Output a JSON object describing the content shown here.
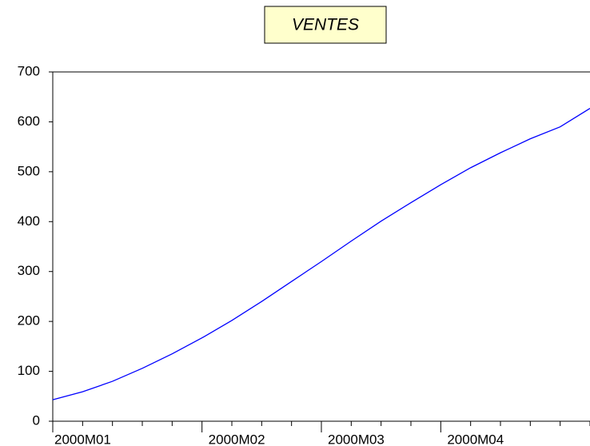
{
  "chart_data": {
    "type": "line",
    "title": "VENTES",
    "categories": [
      "2000M01",
      null,
      null,
      null,
      null,
      "2000M02",
      null,
      null,
      null,
      "2000M03",
      null,
      null,
      null,
      "2000M04",
      null,
      null,
      null,
      null,
      null
    ],
    "series": [
      {
        "name": "VENTES",
        "color": "#0000ff",
        "values": [
          43,
          59,
          80,
          106,
          135,
          167,
          202,
          240,
          280,
          320,
          361,
          401,
          438,
          474,
          508,
          538,
          566,
          590,
          627
        ]
      }
    ],
    "ylim": [
      0,
      700
    ],
    "yticks": [
      0,
      100,
      200,
      300,
      400,
      500,
      600,
      700
    ]
  }
}
